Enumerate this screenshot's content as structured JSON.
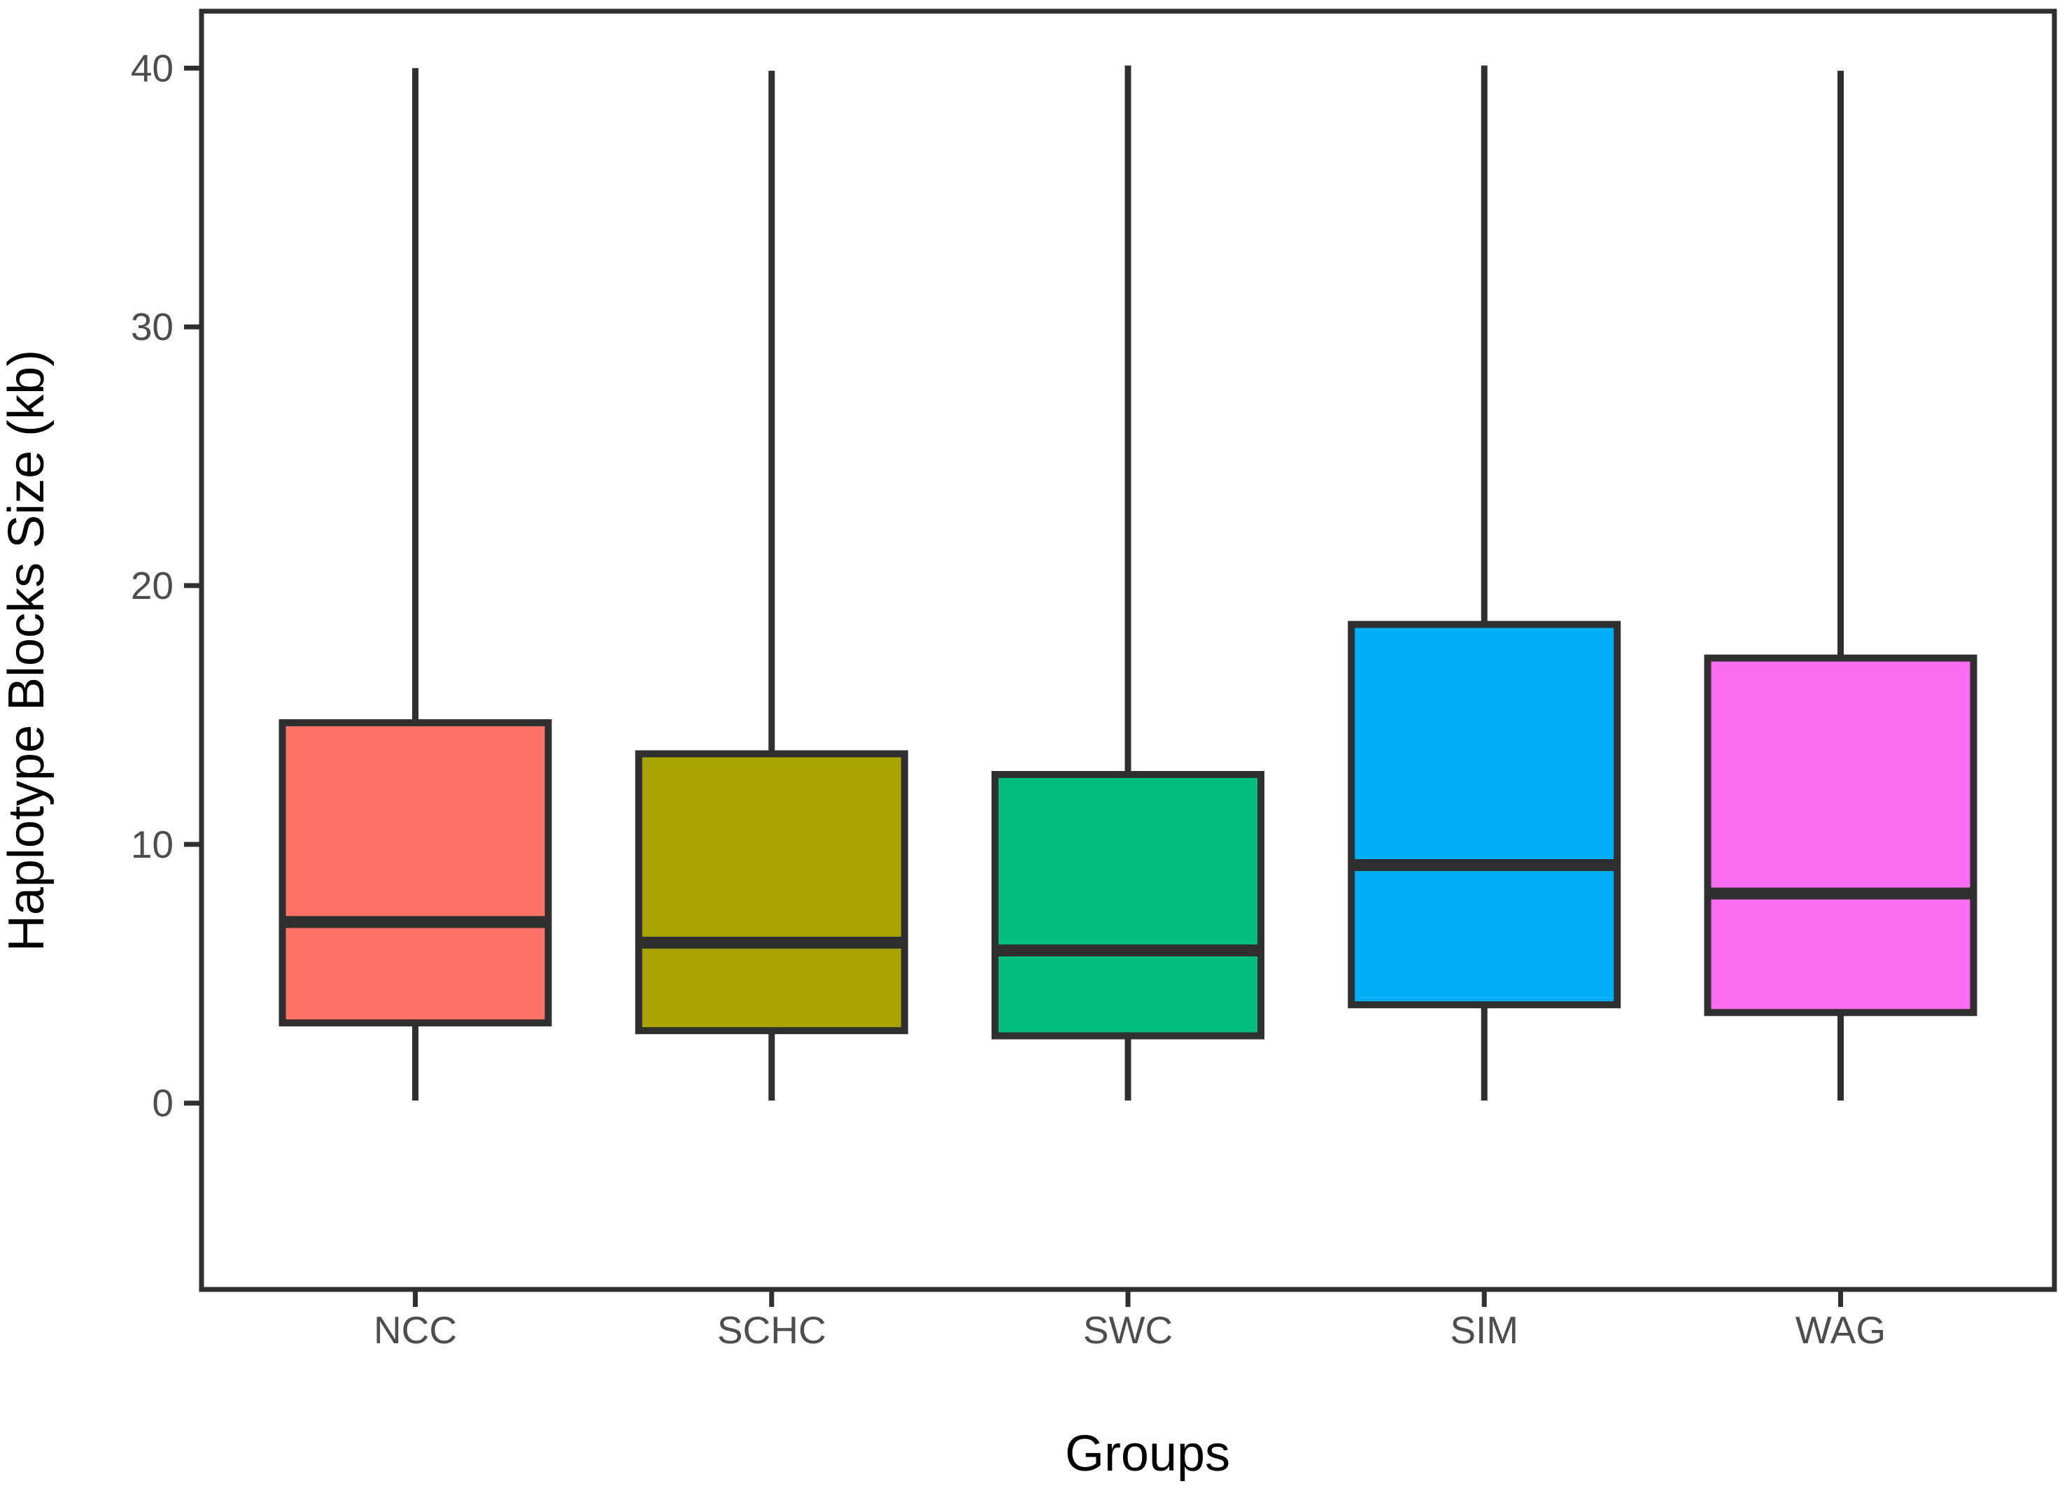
{
  "page": {
    "background": "#ffffff"
  },
  "chart_data": {
    "type": "boxplot",
    "title": "",
    "xlabel": "Groups",
    "ylabel": "Haplotype Blocks Size (kb)",
    "categories": [
      "NCC",
      "SCHC",
      "SWC",
      "SIM",
      "WAG"
    ],
    "yticks": [
      0,
      10,
      20,
      30,
      40
    ],
    "ylim": [
      -7.2,
      42.2
    ],
    "grid": false,
    "legend": "none",
    "panel_border": true,
    "series": [
      {
        "label": "NCC",
        "min": 0.1,
        "q1": 3.1,
        "median": 7.0,
        "q3": 14.7,
        "max": 40.0,
        "fill": "#FC7267"
      },
      {
        "label": "SCHC",
        "min": 0.1,
        "q1": 2.8,
        "median": 6.2,
        "q3": 13.5,
        "max": 39.9,
        "fill": "#A8A500"
      },
      {
        "label": "SWC",
        "min": 0.1,
        "q1": 2.6,
        "median": 5.9,
        "q3": 12.7,
        "max": 40.1,
        "fill": "#00BE7C"
      },
      {
        "label": "SIM",
        "min": 0.1,
        "q1": 3.8,
        "median": 9.2,
        "q3": 18.5,
        "max": 40.1,
        "fill": "#00AFF5"
      },
      {
        "label": "WAG",
        "min": 0.1,
        "q1": 3.5,
        "median": 8.1,
        "q3": 17.2,
        "max": 39.9,
        "fill": "#FA6DF2"
      }
    ],
    "colors": {
      "stroke": "#2F2F2F",
      "tick_label": "#4d4d4d",
      "axis_title": "#000000",
      "panel_background": "#ffffff"
    }
  }
}
